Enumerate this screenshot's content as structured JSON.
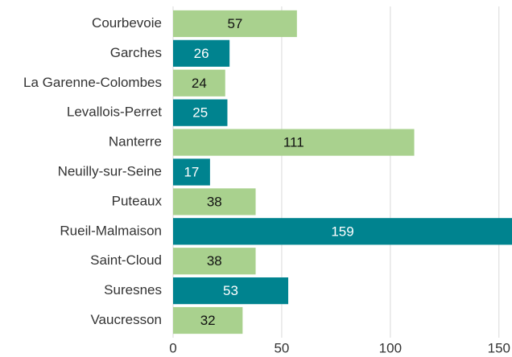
{
  "chart_data": {
    "type": "bar",
    "orientation": "horizontal",
    "categories": [
      "Courbevoie",
      "Garches",
      "La Garenne-Colombes",
      "Levallois-Perret",
      "Nanterre",
      "Neuilly-sur-Seine",
      "Puteaux",
      "Rueil-Malmaison",
      "Saint-Cloud",
      "Suresnes",
      "Vaucresson"
    ],
    "values": [
      57,
      26,
      24,
      25,
      111,
      17,
      38,
      159,
      38,
      53,
      32
    ],
    "colors": [
      "#a9d18e",
      "#00838f",
      "#a9d18e",
      "#00838f",
      "#a9d18e",
      "#00838f",
      "#a9d18e",
      "#00838f",
      "#a9d18e",
      "#00838f",
      "#a9d18e"
    ],
    "xlim": [
      0,
      156
    ],
    "xticks": [
      0,
      50,
      100,
      150
    ],
    "grid": true
  }
}
